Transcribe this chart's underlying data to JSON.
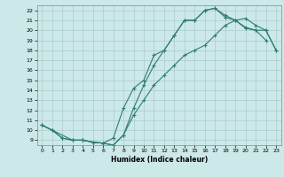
{
  "xlabel": "Humidex (Indice chaleur)",
  "bg_color": "#cce8e8",
  "line_color": "#2e7d6e",
  "grid_color": "#aacccc",
  "xlim": [
    -0.5,
    23.5
  ],
  "ylim": [
    8.5,
    22.5
  ],
  "xticks": [
    0,
    1,
    2,
    3,
    4,
    5,
    6,
    7,
    8,
    9,
    10,
    11,
    12,
    13,
    14,
    15,
    16,
    17,
    18,
    19,
    20,
    21,
    22,
    23
  ],
  "yticks": [
    9,
    10,
    11,
    12,
    13,
    14,
    15,
    16,
    17,
    18,
    19,
    20,
    21,
    22
  ],
  "line1_x": [
    0,
    1,
    2,
    3,
    4,
    5,
    6,
    7,
    8,
    9,
    10,
    11,
    12,
    13,
    14,
    15,
    16,
    17,
    18,
    19,
    20,
    21,
    22,
    23
  ],
  "line1_y": [
    10.5,
    10.0,
    9.2,
    9.0,
    9.0,
    8.8,
    8.7,
    9.2,
    12.2,
    14.2,
    15.0,
    17.5,
    18.0,
    19.5,
    21.0,
    21.0,
    22.0,
    22.2,
    21.3,
    21.0,
    20.2,
    20.0,
    20.0,
    18.0
  ],
  "line2_x": [
    0,
    1,
    2,
    3,
    4,
    5,
    6,
    7,
    8,
    9,
    10,
    11,
    12,
    13,
    14,
    15,
    16,
    17,
    18,
    19,
    20,
    21,
    22
  ],
  "line2_y": [
    10.5,
    10.0,
    9.2,
    9.0,
    9.0,
    8.8,
    8.7,
    8.5,
    9.5,
    12.2,
    14.5,
    16.5,
    18.0,
    19.5,
    21.0,
    21.0,
    22.0,
    22.2,
    21.5,
    21.0,
    20.3,
    20.0,
    19.0
  ],
  "line3_x": [
    0,
    3,
    4,
    5,
    6,
    7,
    8,
    9,
    10,
    11,
    12,
    13,
    14,
    15,
    16,
    17,
    18,
    19,
    20,
    21,
    22,
    23
  ],
  "line3_y": [
    10.5,
    9.0,
    9.0,
    8.8,
    8.7,
    8.5,
    9.5,
    11.5,
    13.0,
    14.5,
    15.5,
    16.5,
    17.5,
    18.0,
    18.5,
    19.5,
    20.5,
    21.0,
    21.2,
    20.5,
    20.0,
    18.0
  ]
}
